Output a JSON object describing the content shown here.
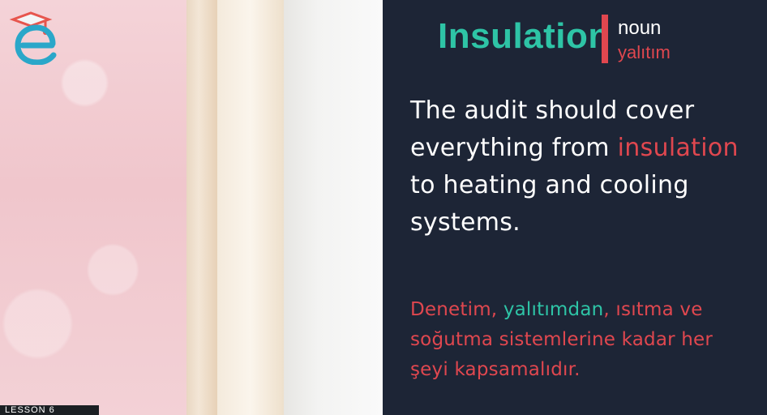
{
  "headword": "Insulation",
  "part_of_speech": "noun",
  "translation": "yalıtım",
  "example": {
    "before": "The audit should cover everything from ",
    "highlight": "insulation",
    "after": " to heating and cooling systems."
  },
  "turkish_example": {
    "before": "Denetim, ",
    "highlight": "yalıtımdan",
    "after": ", ısıtma ve soğutma sistemlerine kadar her şeyi kapsamalıdır."
  },
  "lesson_label": "LESSON 6",
  "colors": {
    "panel_bg": "#1d2536",
    "headword": "#2ec4a6",
    "accent_red": "#e0474f",
    "text_white": "#ffffff"
  },
  "icons": {
    "logo": "e-learning-logo"
  }
}
